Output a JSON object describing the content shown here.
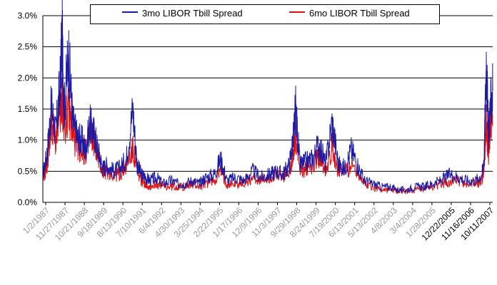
{
  "colors": {
    "series1": "#1a1aa6",
    "series2": "#e01010",
    "grid": "#000000",
    "background": "#ffffff"
  },
  "chart_data": {
    "type": "line",
    "title": "",
    "xlabel": "",
    "ylabel": "",
    "ylim": [
      0,
      3.0
    ],
    "grid": true,
    "legend": "top",
    "y_ticks": [
      "0.0%",
      "0.5%",
      "1.0%",
      "1.5%",
      "2.0%",
      "2.5%",
      "3.0%"
    ],
    "y_tick_values": [
      0,
      0.5,
      1.0,
      1.5,
      2.0,
      2.5,
      3.0
    ],
    "x_tick_labels": [
      "1/2/1987",
      "11/27/1987",
      "10/21/1988",
      "9/18/1989",
      "8/13/1990",
      "7/10/1991",
      "6/4/1992",
      "4/30/1993",
      "3/25/1994",
      "2/22/1995",
      "1/17/1996",
      "12/9/1996",
      "11/3/1997",
      "9/29/1998",
      "8/24/1999",
      "7/19/2000",
      "6/13/2001",
      "5/13/2002",
      "4/8/2003",
      "3/4/2004",
      "1/28/2005",
      "12/22/2005",
      "11/16/2006",
      "10/11/2007"
    ],
    "series": [
      {
        "name": "3mo LIBOR Tbill Spread",
        "color": "#1a1aa6",
        "x": [
          1987.0,
          1987.2,
          1987.4,
          1987.6,
          1987.8,
          1987.9,
          1988.0,
          1988.2,
          1988.4,
          1988.6,
          1988.8,
          1989.0,
          1989.2,
          1989.4,
          1989.6,
          1989.8,
          1990.0,
          1990.3,
          1990.6,
          1990.9,
          1991.2,
          1991.4,
          1991.6,
          1991.8,
          1992.0,
          1992.3,
          1992.6,
          1993.0,
          1993.3,
          1993.6,
          1994.0,
          1994.3,
          1994.6,
          1995.0,
          1995.3,
          1995.6,
          1996.0,
          1996.4,
          1996.8,
          1997.2,
          1997.6,
          1997.9,
          1998.2,
          1998.5,
          1998.7,
          1998.8,
          1999.0,
          1999.3,
          1999.6,
          1999.9,
          2000.2,
          2000.5,
          2000.8,
          2001.1,
          2001.4,
          2001.7,
          2002.0,
          2002.4,
          2002.8,
          2003.2,
          2003.6,
          2004.0,
          2004.4,
          2004.8,
          2005.2,
          2005.6,
          2006.0,
          2006.4,
          2006.8,
          2007.2,
          2007.5,
          2007.6,
          2007.7,
          2007.8,
          2007.9,
          2008.0
        ],
        "values": [
          0.45,
          0.8,
          1.55,
          1.1,
          1.85,
          2.65,
          1.5,
          2.4,
          1.3,
          1.05,
          1.0,
          0.85,
          1.25,
          1.1,
          0.8,
          0.55,
          0.6,
          0.5,
          0.55,
          0.7,
          1.5,
          0.6,
          0.45,
          0.4,
          0.35,
          0.4,
          0.3,
          0.35,
          0.3,
          0.3,
          0.35,
          0.3,
          0.4,
          0.45,
          0.7,
          0.35,
          0.4,
          0.35,
          0.5,
          0.4,
          0.45,
          0.5,
          0.45,
          0.6,
          1.05,
          1.5,
          0.6,
          0.65,
          0.7,
          0.95,
          0.6,
          1.3,
          0.6,
          0.55,
          0.85,
          0.6,
          0.35,
          0.3,
          0.25,
          0.25,
          0.2,
          0.2,
          0.25,
          0.25,
          0.3,
          0.35,
          0.45,
          0.4,
          0.35,
          0.35,
          0.45,
          0.75,
          2.3,
          1.1,
          1.55,
          1.8
        ]
      },
      {
        "name": "6mo LIBOR Tbill Spread",
        "color": "#e01010",
        "x": [
          1987.0,
          1987.2,
          1987.4,
          1987.6,
          1987.8,
          1987.9,
          1988.0,
          1988.2,
          1988.4,
          1988.6,
          1988.8,
          1989.0,
          1989.2,
          1989.4,
          1989.6,
          1989.8,
          1990.0,
          1990.3,
          1990.6,
          1990.9,
          1991.2,
          1991.4,
          1991.6,
          1991.8,
          1992.0,
          1992.3,
          1992.6,
          1993.0,
          1993.3,
          1993.6,
          1994.0,
          1994.3,
          1994.6,
          1995.0,
          1995.3,
          1995.6,
          1996.0,
          1996.4,
          1996.8,
          1997.2,
          1997.6,
          1997.9,
          1998.2,
          1998.5,
          1998.7,
          1998.8,
          1999.0,
          1999.3,
          1999.6,
          1999.9,
          2000.2,
          2000.5,
          2000.8,
          2001.1,
          2001.4,
          2001.7,
          2002.0,
          2002.4,
          2002.8,
          2003.2,
          2003.6,
          2004.0,
          2004.4,
          2004.8,
          2005.2,
          2005.6,
          2006.0,
          2006.4,
          2006.8,
          2007.2,
          2007.5,
          2007.6,
          2007.7,
          2007.8,
          2007.9,
          2008.0
        ],
        "values": [
          0.35,
          0.6,
          1.3,
          1.0,
          1.35,
          1.65,
          1.2,
          1.5,
          1.1,
          0.9,
          0.85,
          0.8,
          1.15,
          1.0,
          0.7,
          0.5,
          0.5,
          0.45,
          0.45,
          0.6,
          0.85,
          0.5,
          0.35,
          0.3,
          0.25,
          0.3,
          0.25,
          0.25,
          0.25,
          0.25,
          0.3,
          0.25,
          0.3,
          0.35,
          0.5,
          0.3,
          0.3,
          0.3,
          0.4,
          0.35,
          0.4,
          0.45,
          0.4,
          0.5,
          0.8,
          1.0,
          0.5,
          0.55,
          0.6,
          0.75,
          0.55,
          0.9,
          0.5,
          0.5,
          0.6,
          0.5,
          0.3,
          0.25,
          0.2,
          0.2,
          0.18,
          0.18,
          0.2,
          0.2,
          0.25,
          0.3,
          0.35,
          0.35,
          0.3,
          0.3,
          0.35,
          0.6,
          1.3,
          0.8,
          1.2,
          1.4
        ]
      }
    ]
  }
}
